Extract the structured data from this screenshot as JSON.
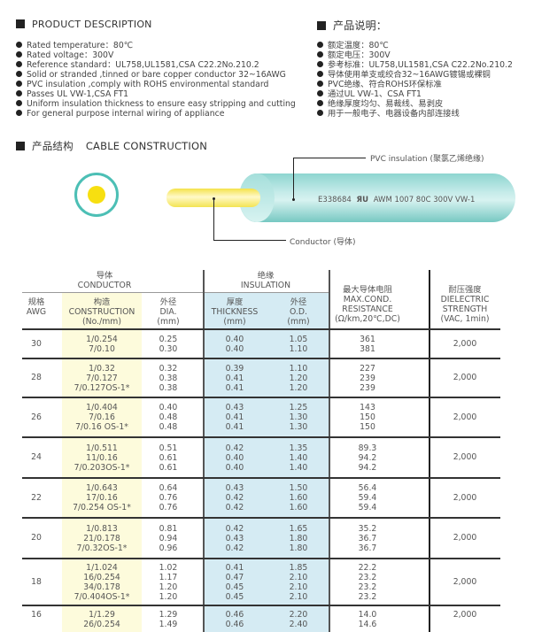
{
  "description_en": {
    "title": "PRODUCT DESCRIPTION",
    "items": [
      "Rated temperature：80℃",
      "Rated voltage：300V",
      "Reference standard：UL758,UL1581,CSA C22.2No.210.2",
      "Solid or stranded ,tinned or bare copper conductor 32~16AWG",
      "PVC insulation ,comply with ROHS environmental standard",
      "Passes UL VW-1,CSA FT1",
      "Uniform insulation thickness to ensure easy stripping and cutting",
      "For general purpose internal wiring of appliance"
    ]
  },
  "description_cn": {
    "title": "产品说明：",
    "items": [
      "额定温度：80℃",
      "额定电压：300V",
      "参考标准：UL758,UL1581,CSA C22.2No.210.2",
      "导体使用单支或绞合32~16AWG镀锡或裸铜",
      "PVC绝缘、符合ROHS环保标准",
      "通过UL VW-1、CSA FT1",
      "绝缘厚度均匀、易裁线、易剥皮",
      "用于一般电子、电器设备内部连接线"
    ]
  },
  "construction": {
    "title_cn": "产品结构",
    "title_en": "CABLE CONSTRUCTION",
    "insulation_label": "PVC insulation (聚氯乙烯绝缘)",
    "conductor_label": "Conductor (导体)",
    "print": "E338684",
    "print_rest": "AWM 1007 80C 300V VW-1",
    "ul_mark": "ЯU",
    "colors": {
      "insulation": "#8fd3cf",
      "conductor": "#f5e04a",
      "ring": "#4cbfb5"
    }
  },
  "table": {
    "headers": {
      "conductor_cn": "导体",
      "conductor_en": "CONDUCTOR",
      "insulation_cn": "绝缘",
      "insulation_en": "INSULATION",
      "awg": [
        "规格",
        "AWG"
      ],
      "construction": [
        "构造",
        "CONSTRUCTION",
        "(No./mm)"
      ],
      "dia": [
        "外径",
        "DIA.",
        "(mm)"
      ],
      "thickness": [
        "厚度",
        "THICKNESS",
        "(mm)"
      ],
      "od": [
        "外径",
        "O.D.",
        "(mm)"
      ],
      "resistance": [
        "最大导体电阻",
        "MAX.COND.",
        "RESISTANCE",
        "(Ω/km,20℃,DC)"
      ],
      "dielectric": [
        "耐压强度",
        "DIELECTRIC",
        "STRENGTH",
        "(VAC, 1min)"
      ]
    },
    "rows": [
      {
        "awg": "30",
        "construction": [
          "1/0.254",
          "7/0.10"
        ],
        "dia": [
          "0.25",
          "0.30"
        ],
        "thickness": [
          "0.40",
          "0.40"
        ],
        "od": [
          "1.05",
          "1.10"
        ],
        "resistance": [
          "361",
          "381"
        ],
        "dielectric": "2,000"
      },
      {
        "awg": "28",
        "construction": [
          "1/0.32",
          "7/0.127",
          "7/0.127OS-1*"
        ],
        "dia": [
          "0.32",
          "0.38",
          "0.38"
        ],
        "thickness": [
          "0.39",
          "0.41",
          "0.41"
        ],
        "od": [
          "1.10",
          "1.20",
          "1.20"
        ],
        "resistance": [
          "227",
          "239",
          "239"
        ],
        "dielectric": "2,000"
      },
      {
        "awg": "26",
        "construction": [
          "1/0.404",
          "7/0.16",
          "7/0.16 OS-1*"
        ],
        "dia": [
          "0.40",
          "0.48",
          "0.48"
        ],
        "thickness": [
          "0.43",
          "0.41",
          "0.41"
        ],
        "od": [
          "1.25",
          "1.30",
          "1.30"
        ],
        "resistance": [
          "143",
          "150",
          "150"
        ],
        "dielectric": "2,000"
      },
      {
        "awg": "24",
        "construction": [
          "1/0.511",
          "11/0.16",
          "7/0.203OS-1*"
        ],
        "dia": [
          "0.51",
          "0.61",
          "0.61"
        ],
        "thickness": [
          "0.42",
          "0.40",
          "0.40"
        ],
        "od": [
          "1.35",
          "1.40",
          "1.40"
        ],
        "resistance": [
          "89.3",
          "94.2",
          "94.2"
        ],
        "dielectric": "2,000"
      },
      {
        "awg": "22",
        "construction": [
          "1/0.643",
          "17/0.16",
          "7/0.254 OS-1*"
        ],
        "dia": [
          "0.64",
          "0.76",
          "0.76"
        ],
        "thickness": [
          "0.43",
          "0.42",
          "0.42"
        ],
        "od": [
          "1.50",
          "1.60",
          "1.60"
        ],
        "resistance": [
          "56.4",
          "59.4",
          "59.4"
        ],
        "dielectric": "2,000"
      },
      {
        "awg": "20",
        "construction": [
          "1/0.813",
          "21/0.178",
          "7/0.32OS-1*"
        ],
        "dia": [
          "0.81",
          "0.94",
          "0.96"
        ],
        "thickness": [
          "0.42",
          "0.43",
          "0.42"
        ],
        "od": [
          "1.65",
          "1.80",
          "1.80"
        ],
        "resistance": [
          "35.2",
          "36.7",
          "36.7"
        ],
        "dielectric": "2,000"
      },
      {
        "awg": "18",
        "construction": [
          "1/1.024",
          "16/0.254",
          "34/0.178",
          "7/0.404OS-1*"
        ],
        "dia": [
          "1.02",
          "1.17",
          "1.20",
          "1.20"
        ],
        "thickness": [
          "0.41",
          "0.47",
          "0.45",
          "0.45"
        ],
        "od": [
          "1.85",
          "2.10",
          "2.10",
          "2.10"
        ],
        "resistance": [
          "22.2",
          "23.2",
          "23.2",
          "23.2"
        ],
        "dielectric": "2,000"
      },
      {
        "awg": "16",
        "construction": [
          "1/1.29",
          "26/0.254"
        ],
        "dia": [
          "1.29",
          "1.49"
        ],
        "thickness": [
          "0.46",
          "0.46"
        ],
        "od": [
          "2.20",
          "2.40"
        ],
        "resistance": [
          "14.0",
          "14.6"
        ],
        "dielectric": "2,000"
      }
    ],
    "colors": {
      "construction_bg": "#fdfbdc",
      "insulation_bg": "#d5ebf3"
    }
  }
}
